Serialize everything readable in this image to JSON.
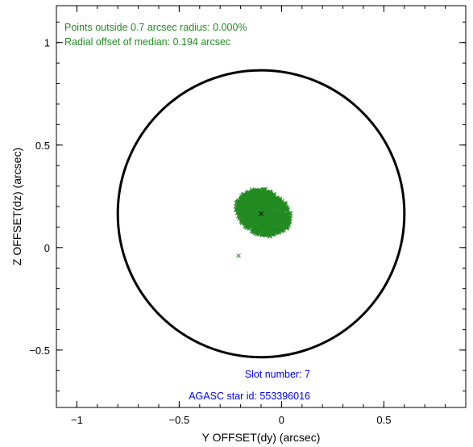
{
  "chart_data": {
    "type": "scatter",
    "xlabel": "Y OFFSET(dy) (arcsec)",
    "ylabel": "Z OFFSET(dz) (arcsec)",
    "xlim": [
      -1.1,
      0.9
    ],
    "ylim": [
      -0.78,
      1.18
    ],
    "x_ticks": [
      -1,
      -0.5,
      0,
      0.5
    ],
    "x_tick_labels": [
      "−1",
      "−0.5",
      "0",
      "0.5"
    ],
    "y_ticks": [
      -0.5,
      0,
      0.5,
      1
    ],
    "y_tick_labels": [
      "−0.5",
      "0",
      "0.5",
      "1"
    ],
    "grid": false,
    "circle": {
      "center": [
        -0.1,
        0.165
      ],
      "radius": 0.7,
      "color": "#000000"
    },
    "cluster": {
      "color": "#228b22",
      "center": [
        -0.1,
        0.165
      ],
      "approx_x_range": [
        -0.22,
        0.04
      ],
      "approx_y_range": [
        0.06,
        0.28
      ]
    },
    "outlier_points": [
      {
        "x": -0.21,
        "y": -0.04
      }
    ],
    "median_marker": {
      "x": -0.1,
      "y": 0.165,
      "color": "#000000"
    },
    "annotations": {
      "points_outside": "Points outside 0.7 arcsec radius: 0.000%",
      "radial_offset": "Radial offset of median: 0.194 arcsec",
      "slot_number": "Slot number: 7",
      "agasc_id": "AGASC star id: 553396016",
      "green_color": "#228b22",
      "blue_color": "#0000ff"
    }
  }
}
